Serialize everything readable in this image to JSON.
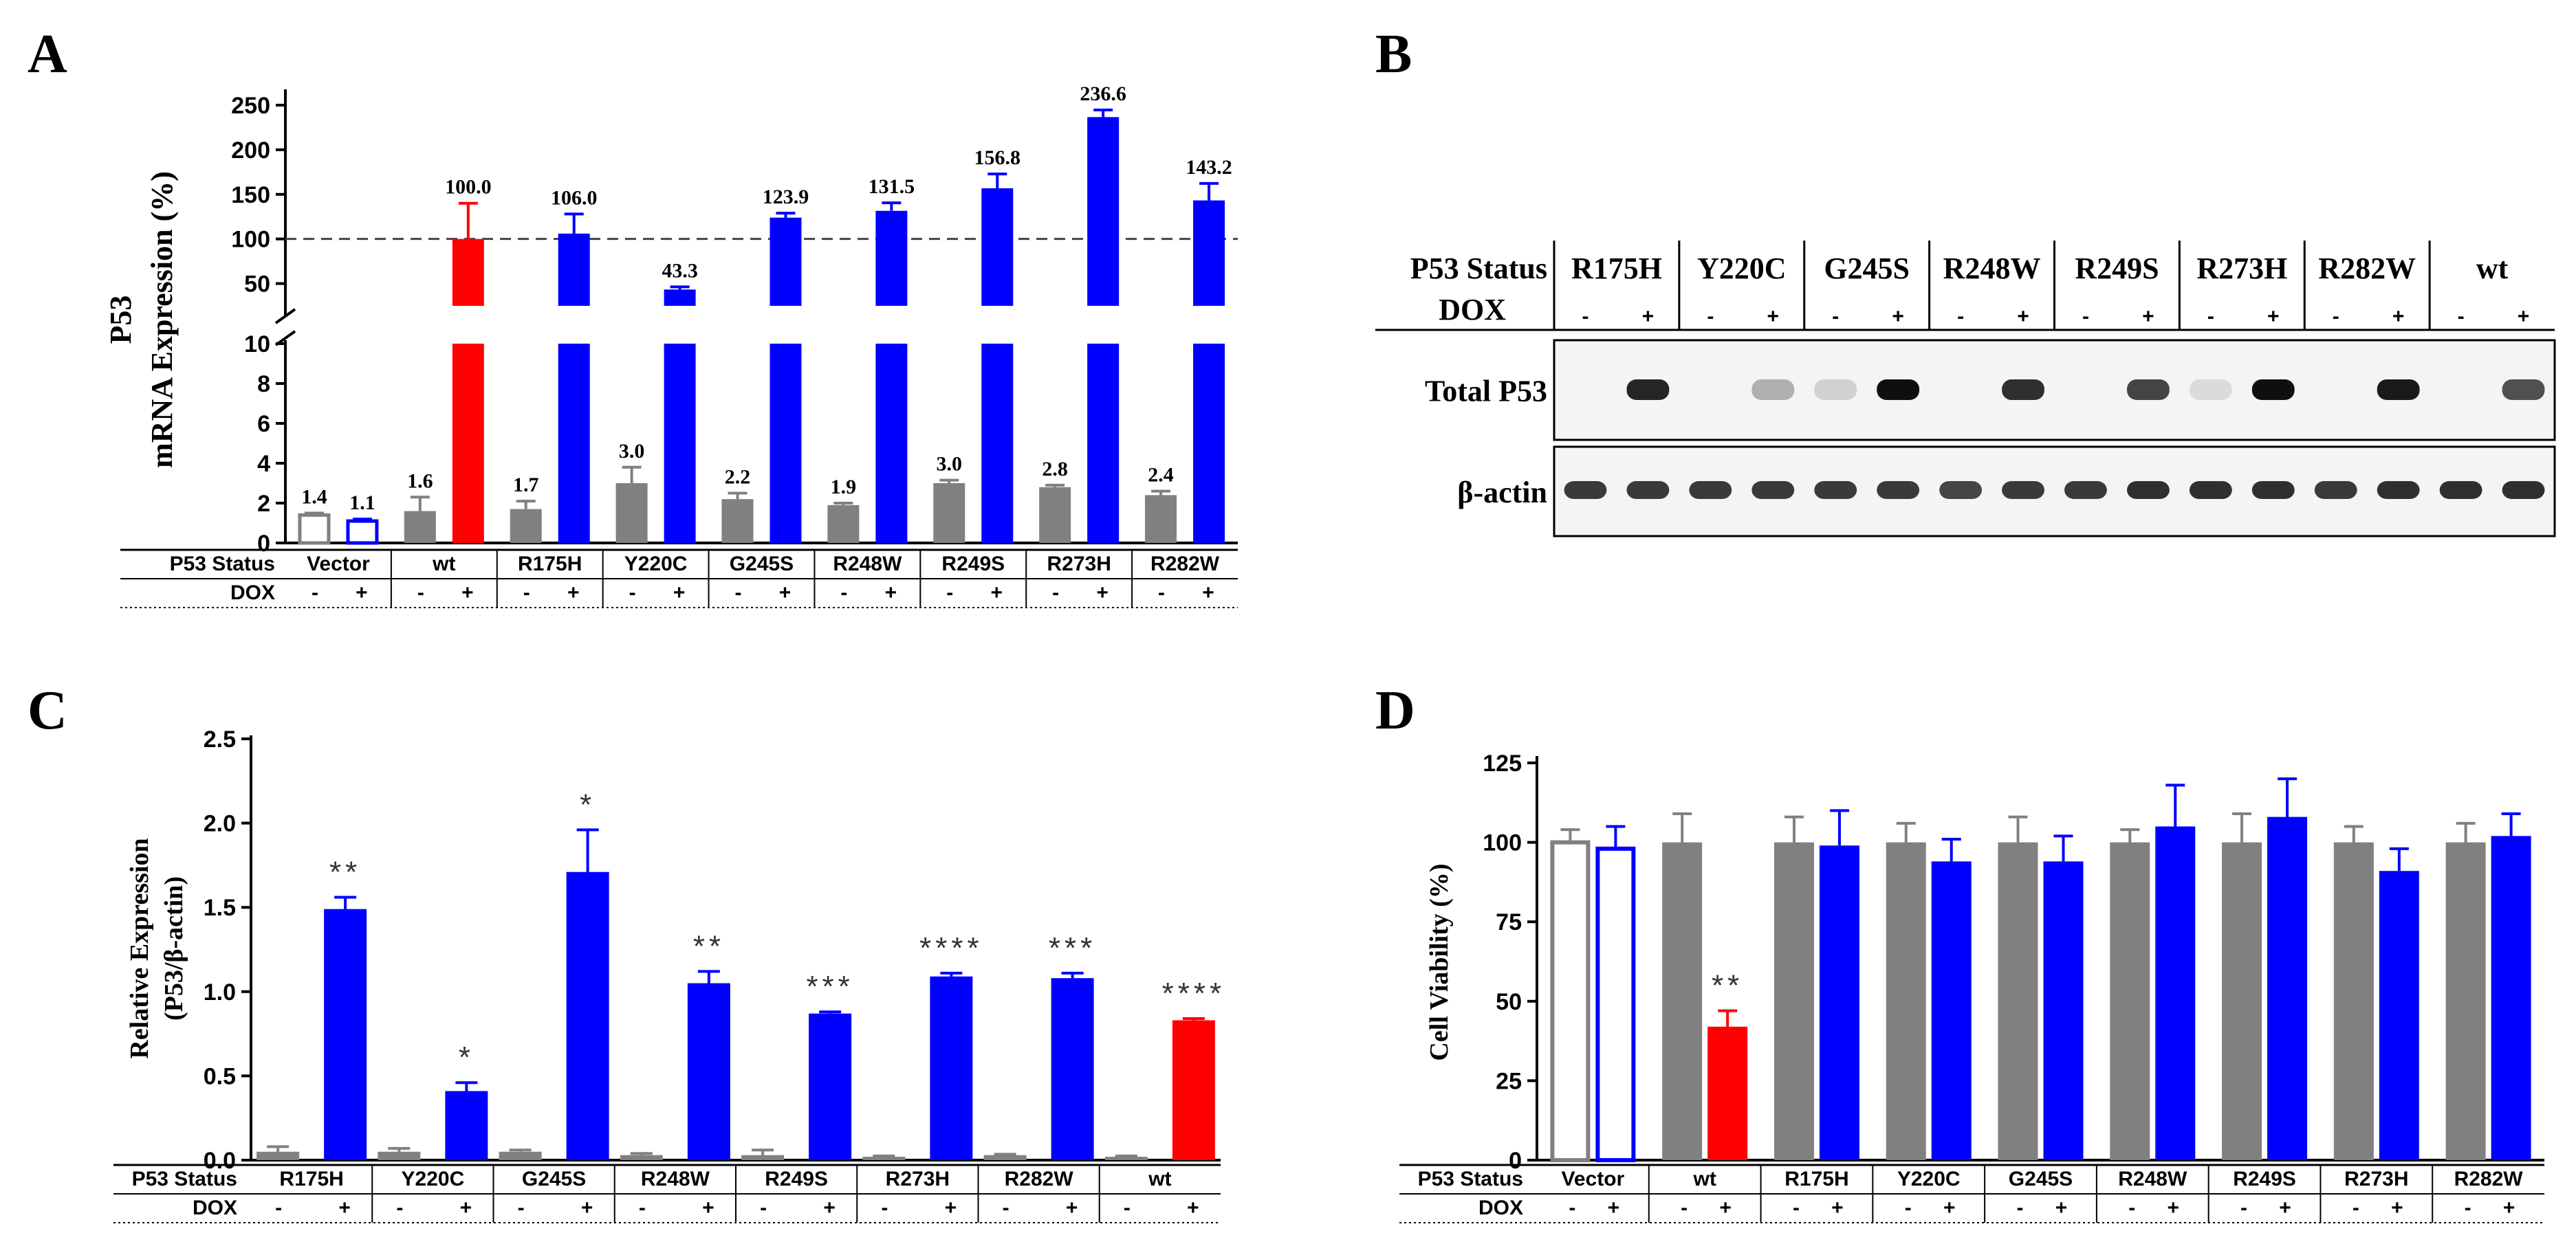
{
  "panels": {
    "A": "A",
    "B": "B",
    "C": "C",
    "D": "D"
  },
  "colors": {
    "gray": "#808080",
    "blue": "#0000ff",
    "red": "#ff0000",
    "black": "#000000"
  },
  "chart_data": [
    {
      "id": "A",
      "type": "bar",
      "ylabel_lines": [
        "P53",
        "mRNA Expression (%)"
      ],
      "yaxis": {
        "lower": {
          "range": [
            0,
            10
          ],
          "ticks": [
            "0",
            "2",
            "4",
            "6",
            "8",
            "10"
          ]
        },
        "upper": {
          "range": [
            25,
            260
          ],
          "ticks": [
            "50",
            "100",
            "150",
            "200",
            "250"
          ]
        }
      },
      "reference_line": 100,
      "groups": [
        "Vector",
        "wt",
        "R175H",
        "Y220C",
        "G245S",
        "R248W",
        "R249S",
        "R273H",
        "R282W"
      ],
      "row_labels": [
        "P53 Status",
        "DOX"
      ],
      "dox_signs": [
        "-",
        "+"
      ],
      "series": [
        {
          "name": "DOX -",
          "values": [
            1.4,
            1.6,
            1.7,
            3.0,
            2.2,
            1.9,
            3.0,
            2.8,
            2.4
          ],
          "errors": [
            0.1,
            0.7,
            0.4,
            0.8,
            0.3,
            0.1,
            0.15,
            0.1,
            0.2
          ],
          "labels": [
            "1.4",
            "1.6",
            "1.7",
            "3.0",
            "2.2",
            "1.9",
            "3.0",
            "2.8",
            "2.4"
          ]
        },
        {
          "name": "DOX +",
          "values": [
            1.1,
            100.0,
            106.0,
            43.3,
            123.9,
            131.5,
            156.8,
            236.6,
            143.2
          ],
          "errors": [
            0.1,
            40,
            22,
            3,
            5,
            9,
            16,
            8,
            19
          ],
          "labels": [
            "1.1",
            "100.0",
            "106.0",
            "43.3",
            "123.9",
            "131.5",
            "156.8",
            "236.6",
            "143.2"
          ]
        }
      ]
    },
    {
      "id": "B",
      "type": "table",
      "row_labels": [
        "P53 Status",
        "DOX"
      ],
      "groups": [
        "R175H",
        "Y220C",
        "G245S",
        "R248W",
        "R249S",
        "R273H",
        "R282W",
        "wt"
      ],
      "dox_signs": [
        "-",
        "+"
      ],
      "blot_labels": [
        "Total P53",
        "β-actin"
      ],
      "total_p53_intensity": [
        0.0,
        0.9,
        0.0,
        0.25,
        0.1,
        1.0,
        0.0,
        0.85,
        0.0,
        0.75,
        0.05,
        1.0,
        0.0,
        0.95,
        0.0,
        0.7
      ],
      "beta_actin_intensity": [
        0.8,
        0.8,
        0.8,
        0.8,
        0.8,
        0.8,
        0.75,
        0.8,
        0.8,
        0.85,
        0.85,
        0.85,
        0.8,
        0.85,
        0.85,
        0.85
      ]
    },
    {
      "id": "C",
      "type": "bar",
      "ylabel_lines": [
        "Relative Expression",
        "(P53/β-actin)"
      ],
      "ylim": [
        0,
        2.5
      ],
      "ticks": [
        "0.0",
        "0.5",
        "1.0",
        "1.5",
        "2.0",
        "2.5"
      ],
      "groups": [
        "R175H",
        "Y220C",
        "G245S",
        "R248W",
        "R249S",
        "R273H",
        "R282W",
        "wt"
      ],
      "row_labels": [
        "P53 Status",
        "DOX"
      ],
      "dox_signs": [
        "-",
        "+"
      ],
      "series": [
        {
          "name": "DOX -",
          "values": [
            0.05,
            0.05,
            0.05,
            0.03,
            0.03,
            0.02,
            0.03,
            0.02
          ],
          "errors": [
            0.03,
            0.02,
            0.01,
            0.01,
            0.03,
            0.005,
            0.005,
            0.005
          ]
        },
        {
          "name": "DOX +",
          "values": [
            1.49,
            0.41,
            1.71,
            1.05,
            0.87,
            1.09,
            1.08,
            0.83
          ],
          "errors": [
            0.07,
            0.05,
            0.25,
            0.07,
            0.01,
            0.02,
            0.03,
            0.01
          ]
        }
      ],
      "significance": [
        "**",
        "*",
        "*",
        "**",
        "***",
        "****",
        "***",
        "****"
      ]
    },
    {
      "id": "D",
      "type": "bar",
      "ylabel": "Cell Viability (%)",
      "ylim": [
        0,
        125
      ],
      "ticks": [
        "0",
        "25",
        "50",
        "75",
        "100",
        "125"
      ],
      "groups": [
        "Vector",
        "wt",
        "R175H",
        "Y220C",
        "G245S",
        "R248W",
        "R249S",
        "R273H",
        "R282W"
      ],
      "row_labels": [
        "P53 Status",
        "DOX"
      ],
      "dox_signs": [
        "-",
        "+"
      ],
      "series": [
        {
          "name": "DOX -",
          "values": [
            100,
            100,
            100,
            100,
            100,
            100,
            100,
            100,
            100
          ],
          "errors": [
            4,
            9,
            8,
            6,
            8,
            4,
            9,
            5,
            6
          ]
        },
        {
          "name": "DOX +",
          "values": [
            98,
            42,
            99,
            94,
            94,
            105,
            108,
            91,
            102
          ],
          "errors": [
            7,
            5,
            11,
            7,
            8,
            13,
            12,
            7,
            7
          ]
        }
      ],
      "significance": [
        "",
        "**",
        "",
        "",
        "",
        "",
        "",
        "",
        ""
      ]
    }
  ]
}
